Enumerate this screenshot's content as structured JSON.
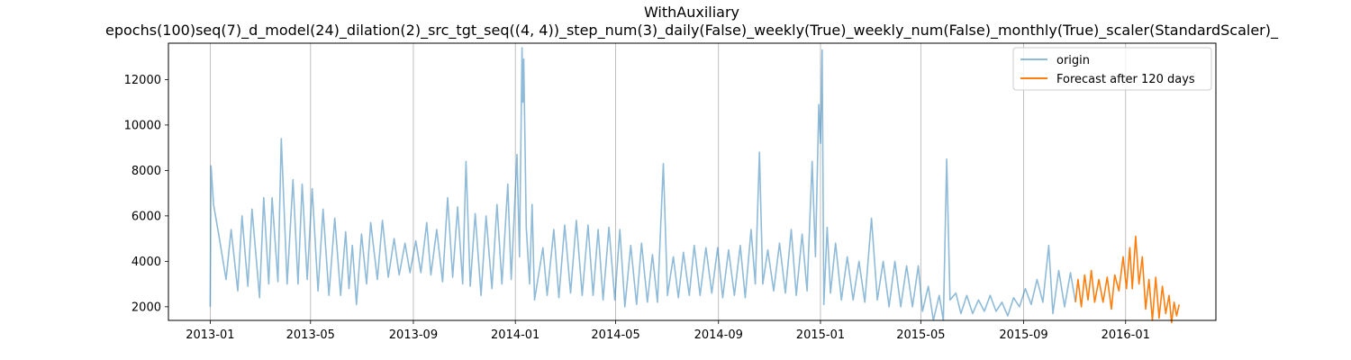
{
  "chart_data": {
    "type": "line",
    "title": "WithAuxiliary",
    "subtitle": "epochs(100)seq(7)_d_model(24)_dilation(2)_src_tgt_seq((4, 4))_step_num(3)_daily(False)_weekly(True)_weekly_num(False)_monthly(True)_scaler(StandardScaler)_",
    "xlabel": "",
    "ylabel": "",
    "x_ticks": [
      "2013-01",
      "2013-05",
      "2013-09",
      "2014-01",
      "2014-05",
      "2014-09",
      "2015-01",
      "2015-05",
      "2015-09",
      "2016-01"
    ],
    "y_ticks": [
      2000,
      4000,
      6000,
      8000,
      10000,
      12000
    ],
    "xlim": [
      "2012-11-12",
      "2016-04-18"
    ],
    "ylim": [
      1400,
      13600
    ],
    "grid": "vertical lines at x ticks",
    "legend_position": "top-right",
    "series": [
      {
        "name": "origin",
        "color": "#1f77b4",
        "alpha": 0.5,
        "points": [
          [
            "2013-01-01",
            2000
          ],
          [
            "2013-01-02",
            8200
          ],
          [
            "2013-01-05",
            6500
          ],
          [
            "2013-01-12",
            5000
          ],
          [
            "2013-01-20",
            3200
          ],
          [
            "2013-01-26",
            5400
          ],
          [
            "2013-02-03",
            2700
          ],
          [
            "2013-02-08",
            6000
          ],
          [
            "2013-02-15",
            2900
          ],
          [
            "2013-02-20",
            6300
          ],
          [
            "2013-03-01",
            2400
          ],
          [
            "2013-03-06",
            6800
          ],
          [
            "2013-03-12",
            3000
          ],
          [
            "2013-03-16",
            6800
          ],
          [
            "2013-03-23",
            3100
          ],
          [
            "2013-03-27",
            9400
          ],
          [
            "2013-04-03",
            3000
          ],
          [
            "2013-04-10",
            7600
          ],
          [
            "2013-04-16",
            3000
          ],
          [
            "2013-04-21",
            7400
          ],
          [
            "2013-04-27",
            3200
          ],
          [
            "2013-05-03",
            7200
          ],
          [
            "2013-05-10",
            2700
          ],
          [
            "2013-05-16",
            6300
          ],
          [
            "2013-05-23",
            2500
          ],
          [
            "2013-05-30",
            5900
          ],
          [
            "2013-06-06",
            2500
          ],
          [
            "2013-06-12",
            5300
          ],
          [
            "2013-06-16",
            2800
          ],
          [
            "2013-06-20",
            4700
          ],
          [
            "2013-06-25",
            2100
          ],
          [
            "2013-07-01",
            5200
          ],
          [
            "2013-07-07",
            3000
          ],
          [
            "2013-07-12",
            5700
          ],
          [
            "2013-07-20",
            3200
          ],
          [
            "2013-07-26",
            5800
          ],
          [
            "2013-08-02",
            3300
          ],
          [
            "2013-08-09",
            5000
          ],
          [
            "2013-08-15",
            3400
          ],
          [
            "2013-08-22",
            4800
          ],
          [
            "2013-08-28",
            3500
          ],
          [
            "2013-09-04",
            4900
          ],
          [
            "2013-09-10",
            3500
          ],
          [
            "2013-09-17",
            5700
          ],
          [
            "2013-09-22",
            3400
          ],
          [
            "2013-09-29",
            5400
          ],
          [
            "2013-10-06",
            3100
          ],
          [
            "2013-10-12",
            6800
          ],
          [
            "2013-10-18",
            3300
          ],
          [
            "2013-10-24",
            6400
          ],
          [
            "2013-10-30",
            3000
          ],
          [
            "2013-11-03",
            8400
          ],
          [
            "2013-11-08",
            2900
          ],
          [
            "2013-11-14",
            6100
          ],
          [
            "2013-11-21",
            2500
          ],
          [
            "2013-11-27",
            6000
          ],
          [
            "2013-12-04",
            2800
          ],
          [
            "2013-12-10",
            6500
          ],
          [
            "2013-12-16",
            3000
          ],
          [
            "2013-12-23",
            7400
          ],
          [
            "2013-12-27",
            3200
          ],
          [
            "2014-01-03",
            8700
          ],
          [
            "2014-01-06",
            4200
          ],
          [
            "2014-01-09",
            13400
          ],
          [
            "2014-01-10",
            11000
          ],
          [
            "2014-01-11",
            12900
          ],
          [
            "2014-01-14",
            5500
          ],
          [
            "2014-01-18",
            3000
          ],
          [
            "2014-01-21",
            6500
          ],
          [
            "2014-01-24",
            2300
          ],
          [
            "2014-02-03",
            4600
          ],
          [
            "2014-02-08",
            2500
          ],
          [
            "2014-02-16",
            5400
          ],
          [
            "2014-02-22",
            2400
          ],
          [
            "2014-03-01",
            5600
          ],
          [
            "2014-03-08",
            2600
          ],
          [
            "2014-03-15",
            5800
          ],
          [
            "2014-03-22",
            2500
          ],
          [
            "2014-03-29",
            5600
          ],
          [
            "2014-04-04",
            2500
          ],
          [
            "2014-04-10",
            5400
          ],
          [
            "2014-04-16",
            2300
          ],
          [
            "2014-04-23",
            5500
          ],
          [
            "2014-04-30",
            2300
          ],
          [
            "2014-05-06",
            5400
          ],
          [
            "2014-05-12",
            2000
          ],
          [
            "2014-05-19",
            4700
          ],
          [
            "2014-05-26",
            2100
          ],
          [
            "2014-06-01",
            4800
          ],
          [
            "2014-06-08",
            2200
          ],
          [
            "2014-06-14",
            4300
          ],
          [
            "2014-06-20",
            2200
          ],
          [
            "2014-06-27",
            8300
          ],
          [
            "2014-07-02",
            2500
          ],
          [
            "2014-07-09",
            4200
          ],
          [
            "2014-07-15",
            2400
          ],
          [
            "2014-07-21",
            4400
          ],
          [
            "2014-07-28",
            2500
          ],
          [
            "2014-08-03",
            4700
          ],
          [
            "2014-08-10",
            2500
          ],
          [
            "2014-08-17",
            4600
          ],
          [
            "2014-08-24",
            2600
          ],
          [
            "2014-08-31",
            4600
          ],
          [
            "2014-09-06",
            2400
          ],
          [
            "2014-09-13",
            4500
          ],
          [
            "2014-09-20",
            2500
          ],
          [
            "2014-09-27",
            4700
          ],
          [
            "2014-10-03",
            2400
          ],
          [
            "2014-10-10",
            5400
          ],
          [
            "2014-10-15",
            3000
          ],
          [
            "2014-10-20",
            8800
          ],
          [
            "2014-10-24",
            3000
          ],
          [
            "2014-10-30",
            4500
          ],
          [
            "2014-11-06",
            2700
          ],
          [
            "2014-11-13",
            4800
          ],
          [
            "2014-11-20",
            2600
          ],
          [
            "2014-11-27",
            5400
          ],
          [
            "2014-12-03",
            2500
          ],
          [
            "2014-12-10",
            5200
          ],
          [
            "2014-12-16",
            2700
          ],
          [
            "2014-12-22",
            8400
          ],
          [
            "2014-12-26",
            4200
          ],
          [
            "2014-12-30",
            10900
          ],
          [
            "2015-01-01",
            9200
          ],
          [
            "2015-01-03",
            13300
          ],
          [
            "2015-01-05",
            2100
          ],
          [
            "2015-01-09",
            5500
          ],
          [
            "2015-01-13",
            2600
          ],
          [
            "2015-01-19",
            4800
          ],
          [
            "2015-01-26",
            2300
          ],
          [
            "2015-02-02",
            4200
          ],
          [
            "2015-02-09",
            2300
          ],
          [
            "2015-02-16",
            4000
          ],
          [
            "2015-02-23",
            2200
          ],
          [
            "2015-03-03",
            5900
          ],
          [
            "2015-03-10",
            2300
          ],
          [
            "2015-03-17",
            4000
          ],
          [
            "2015-03-24",
            2000
          ],
          [
            "2015-03-31",
            4000
          ],
          [
            "2015-04-07",
            2000
          ],
          [
            "2015-04-14",
            3800
          ],
          [
            "2015-04-21",
            2000
          ],
          [
            "2015-04-28",
            3800
          ],
          [
            "2015-05-03",
            1800
          ],
          [
            "2015-05-10",
            2900
          ],
          [
            "2015-05-16",
            1400
          ],
          [
            "2015-05-23",
            2500
          ],
          [
            "2015-05-28",
            1400
          ],
          [
            "2015-06-01",
            8500
          ],
          [
            "2015-06-05",
            2300
          ],
          [
            "2015-06-12",
            2600
          ],
          [
            "2015-06-18",
            1700
          ],
          [
            "2015-06-25",
            2500
          ],
          [
            "2015-07-02",
            1700
          ],
          [
            "2015-07-09",
            2300
          ],
          [
            "2015-07-16",
            1800
          ],
          [
            "2015-07-23",
            2500
          ],
          [
            "2015-07-30",
            1800
          ],
          [
            "2015-08-06",
            2200
          ],
          [
            "2015-08-13",
            1600
          ],
          [
            "2015-08-20",
            2400
          ],
          [
            "2015-08-27",
            2000
          ],
          [
            "2015-09-03",
            2800
          ],
          [
            "2015-09-10",
            2100
          ],
          [
            "2015-09-17",
            3200
          ],
          [
            "2015-09-24",
            2200
          ],
          [
            "2015-10-01",
            4700
          ],
          [
            "2015-10-06",
            1700
          ],
          [
            "2015-10-13",
            3600
          ],
          [
            "2015-10-20",
            2000
          ],
          [
            "2015-10-27",
            3500
          ],
          [
            "2015-11-02",
            2200
          ]
        ]
      },
      {
        "name": "Forecast after 120 days",
        "color": "#ff7f0e",
        "alpha": 1.0,
        "points": [
          [
            "2015-11-02",
            2200
          ],
          [
            "2015-11-05",
            3200
          ],
          [
            "2015-11-09",
            2000
          ],
          [
            "2015-11-13",
            3400
          ],
          [
            "2015-11-17",
            2300
          ],
          [
            "2015-11-21",
            3600
          ],
          [
            "2015-11-25",
            2200
          ],
          [
            "2015-11-30",
            3200
          ],
          [
            "2015-12-05",
            2200
          ],
          [
            "2015-12-10",
            3300
          ],
          [
            "2015-12-15",
            1900
          ],
          [
            "2015-12-19",
            3400
          ],
          [
            "2015-12-24",
            2700
          ],
          [
            "2015-12-29",
            4200
          ],
          [
            "2016-01-02",
            2800
          ],
          [
            "2016-01-06",
            4600
          ],
          [
            "2016-01-09",
            2800
          ],
          [
            "2016-01-13",
            5100
          ],
          [
            "2016-01-17",
            3000
          ],
          [
            "2016-01-21",
            4200
          ],
          [
            "2016-01-25",
            1900
          ],
          [
            "2016-01-29",
            3200
          ],
          [
            "2016-02-02",
            1400
          ],
          [
            "2016-02-06",
            3300
          ],
          [
            "2016-02-10",
            1500
          ],
          [
            "2016-02-14",
            2900
          ],
          [
            "2016-02-18",
            1700
          ],
          [
            "2016-02-22",
            2500
          ],
          [
            "2016-02-25",
            1300
          ],
          [
            "2016-02-28",
            2200
          ],
          [
            "2016-03-02",
            1600
          ],
          [
            "2016-03-05",
            2100
          ]
        ]
      }
    ]
  }
}
